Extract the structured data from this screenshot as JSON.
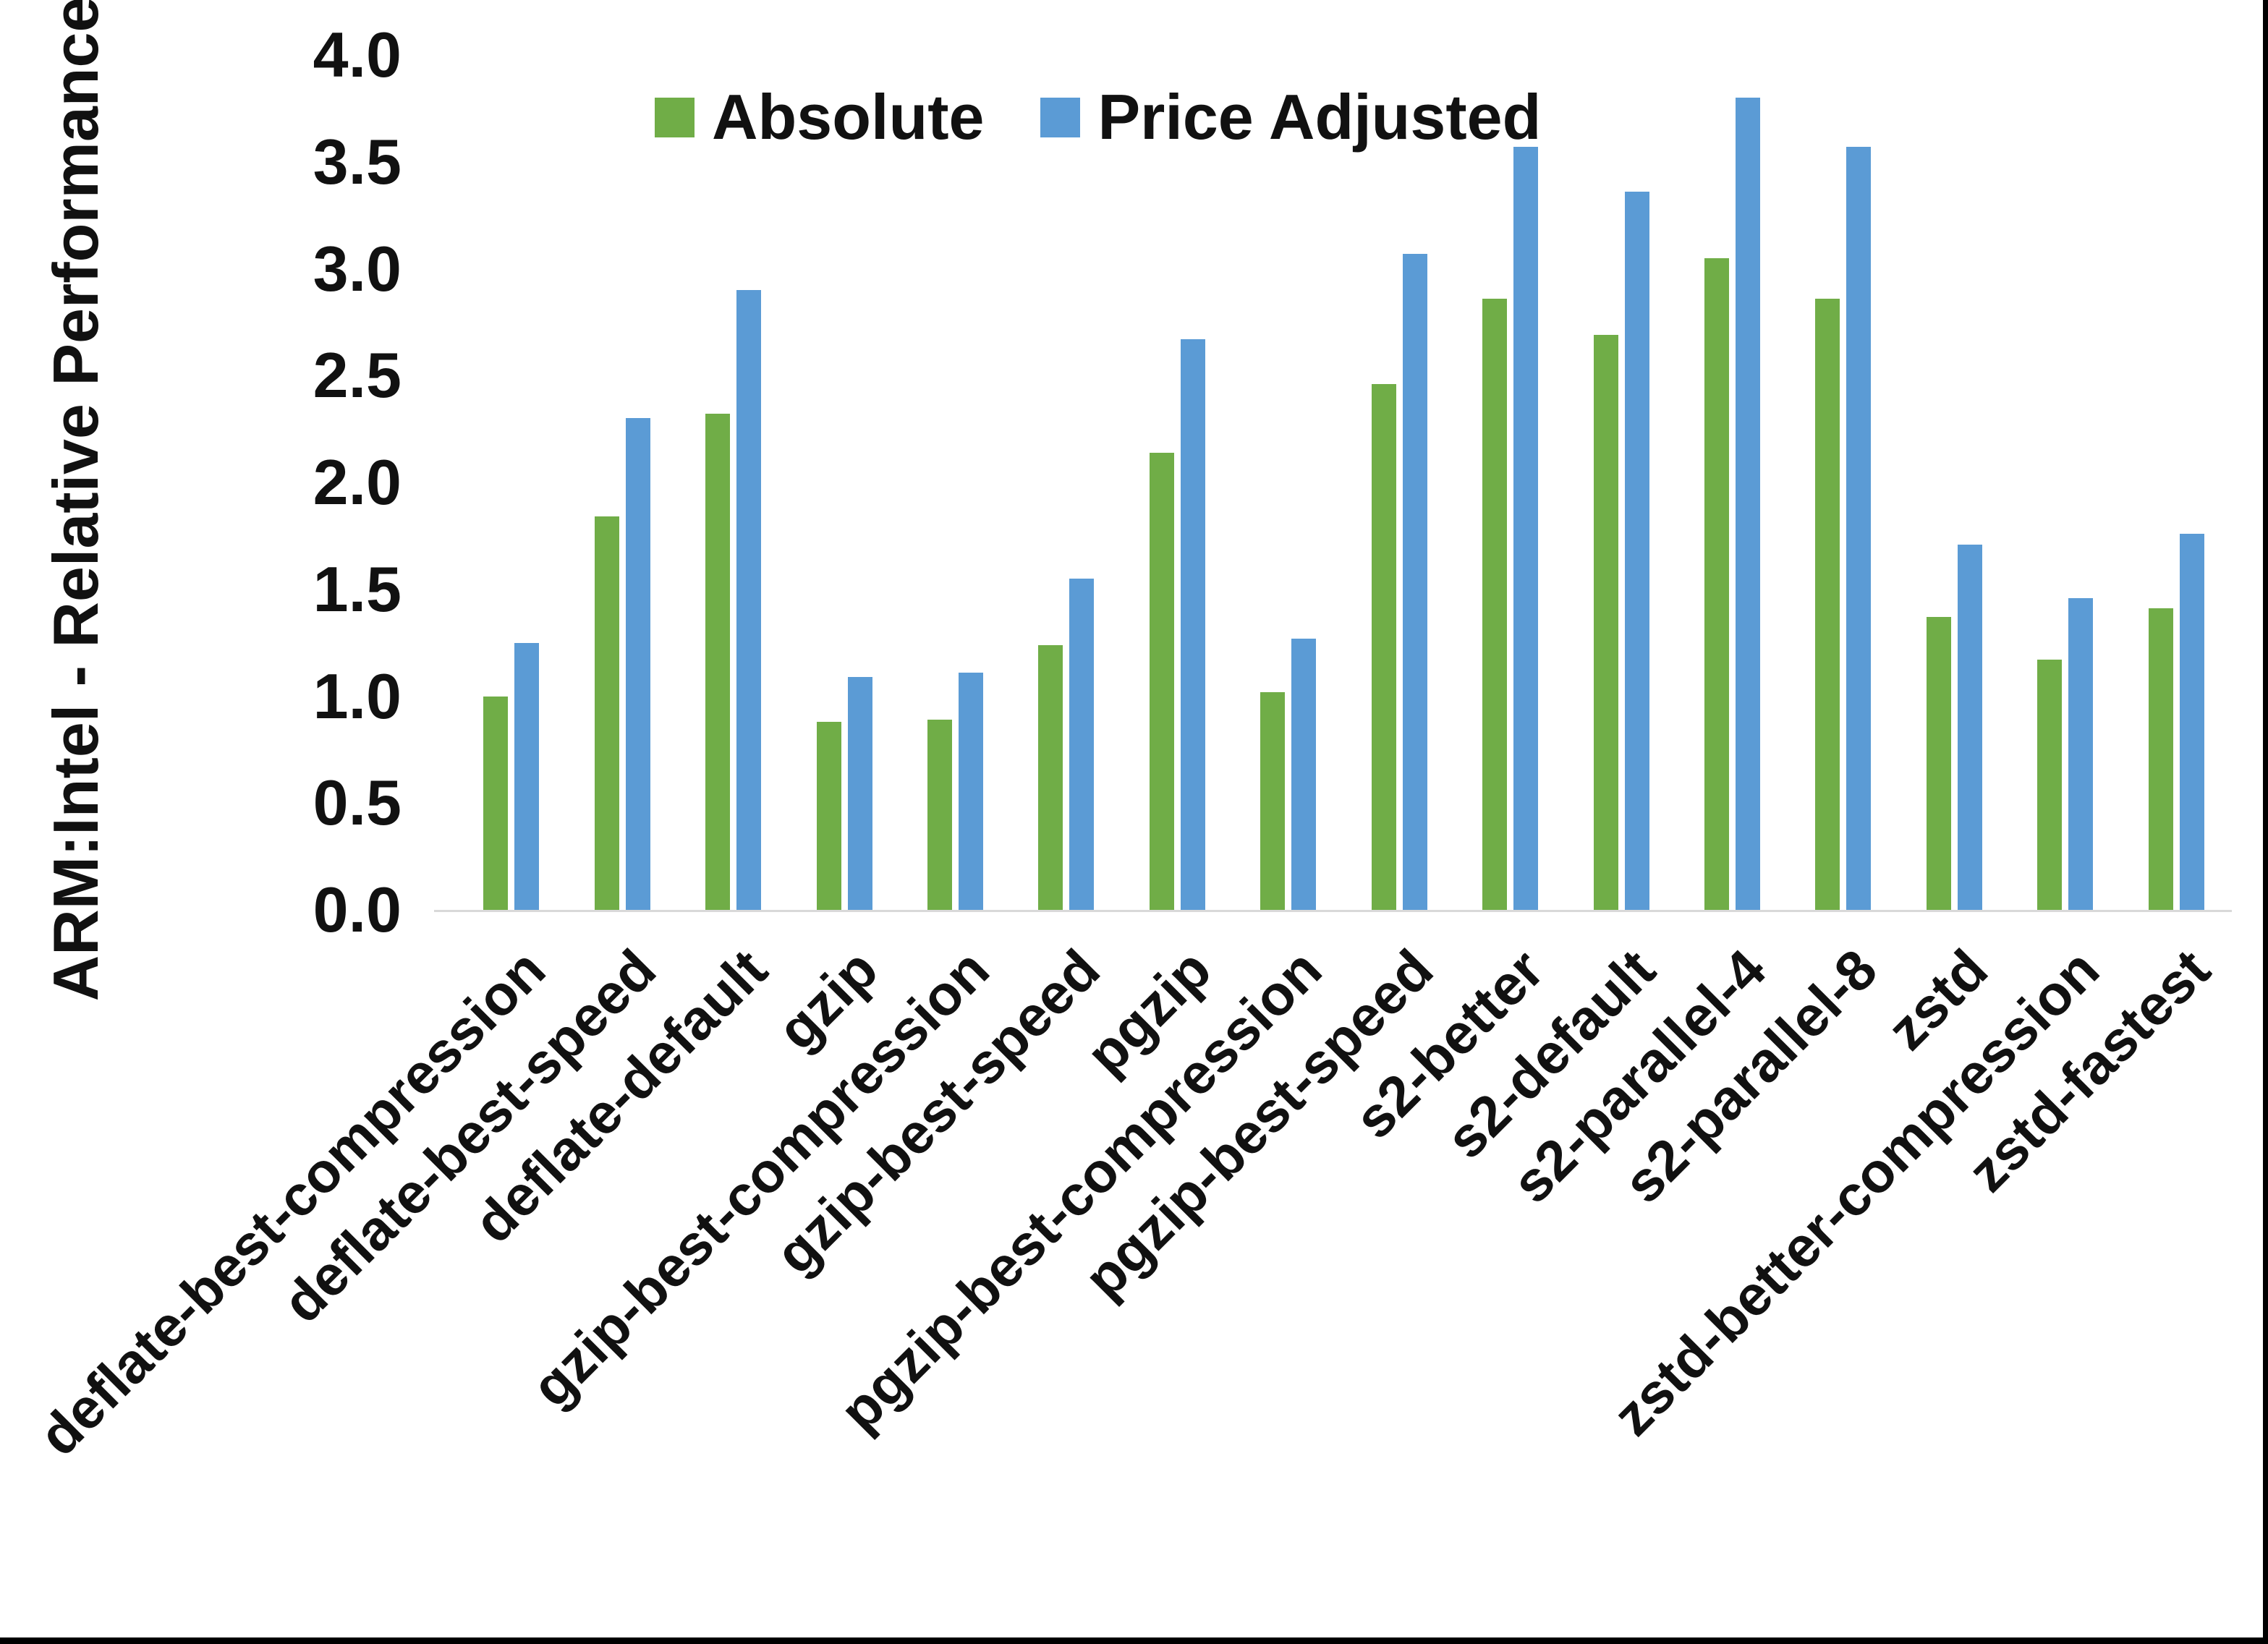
{
  "chart_data": {
    "type": "bar",
    "title": "",
    "xlabel": "",
    "ylabel": "ARM:Intel - Relative Performance",
    "ylim": [
      0.0,
      4.0
    ],
    "ytick_step": 0.5,
    "yticks": [
      "4.0",
      "3.5",
      "3.0",
      "2.5",
      "2.0",
      "1.5",
      "1.0",
      "0.5",
      "0.0"
    ],
    "grid": false,
    "legend_position": "top-center",
    "axis_line_color": "#d9d9d9",
    "categories": [
      "deflate-best-compression",
      "deflate-best-speed",
      "deflate-default",
      "gzip",
      "gzip-best-compression",
      "gzip-best-speed",
      "pgzip",
      "pgzip-best-compression",
      "pgzip-best-speed",
      "s2-better",
      "s2-default",
      "s2-parallel-4",
      "s2-parallel-8",
      "zstd",
      "zstd-better-compression",
      "zstd-fastest"
    ],
    "series": [
      {
        "name": "Absolute",
        "color": "#70AD47",
        "values": [
          1.0,
          1.84,
          2.32,
          0.88,
          0.89,
          1.24,
          2.14,
          1.02,
          2.46,
          2.86,
          2.69,
          3.05,
          2.86,
          1.37,
          1.17,
          1.41
        ]
      },
      {
        "name": "Price Adjusted",
        "color": "#5B9BD5",
        "values": [
          1.25,
          2.3,
          2.9,
          1.09,
          1.11,
          1.55,
          2.67,
          1.27,
          3.07,
          3.57,
          3.36,
          3.8,
          3.57,
          1.71,
          1.46,
          1.76
        ]
      }
    ]
  }
}
